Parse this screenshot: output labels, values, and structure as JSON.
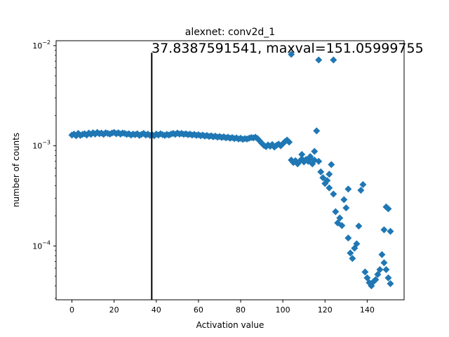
{
  "chart_data": {
    "type": "scatter",
    "title": "alexnet: conv2d_1",
    "annotation": "37.8387591541, maxval=151.05999755",
    "xlabel": "Activation value",
    "ylabel": "number of counts",
    "x_scale": "linear",
    "y_scale": "log",
    "xlim": [
      -7.5,
      157.5
    ],
    "ylim": [
      2.9e-05,
      0.0112
    ],
    "x_ticks": [
      0,
      20,
      40,
      60,
      80,
      100,
      120,
      140
    ],
    "x_tick_labels": [
      "0",
      "20",
      "40",
      "60",
      "80",
      "100",
      "120",
      "140"
    ],
    "y_ticks": [
      0.0001,
      0.001,
      0.01
    ],
    "y_tick_labels": [
      "10^-4",
      "10^-3",
      "10^-2"
    ],
    "marker": "diamond",
    "color": "#1f77b4",
    "vline": {
      "x": 37.84,
      "y_top": 0.0085,
      "color": "#000000"
    },
    "grid": false,
    "series": [
      {
        "points": [
          [
            0,
            0.00128
          ],
          [
            1,
            0.00131
          ],
          [
            2,
            0.00126
          ],
          [
            3,
            0.00133
          ],
          [
            4,
            0.00127
          ],
          [
            5,
            0.0013
          ],
          [
            6,
            0.00132
          ],
          [
            7,
            0.00128
          ],
          [
            8,
            0.00134
          ],
          [
            9,
            0.0013
          ],
          [
            10,
            0.00135
          ],
          [
            11,
            0.00131
          ],
          [
            12,
            0.00136
          ],
          [
            13,
            0.00132
          ],
          [
            14,
            0.00134
          ],
          [
            15,
            0.0013
          ],
          [
            16,
            0.00135
          ],
          [
            17,
            0.00133
          ],
          [
            18,
            0.00131
          ],
          [
            19,
            0.00134
          ],
          [
            20,
            0.00136
          ],
          [
            21,
            0.00132
          ],
          [
            22,
            0.00135
          ],
          [
            23,
            0.00131
          ],
          [
            24,
            0.00134
          ],
          [
            25,
            0.00133
          ],
          [
            26,
            0.0013
          ],
          [
            27,
            0.00132
          ],
          [
            28,
            0.00128
          ],
          [
            29,
            0.00131
          ],
          [
            30,
            0.00129
          ],
          [
            31,
            0.00132
          ],
          [
            32,
            0.00127
          ],
          [
            33,
            0.0013
          ],
          [
            34,
            0.00133
          ],
          [
            35,
            0.00128
          ],
          [
            36,
            0.00131
          ],
          [
            37,
            0.00127
          ],
          [
            38,
            0.00129
          ],
          [
            39,
            0.00126
          ],
          [
            40,
            0.00131
          ],
          [
            41,
            0.00128
          ],
          [
            42,
            0.00132
          ],
          [
            43,
            0.00129
          ],
          [
            44,
            0.00127
          ],
          [
            45,
            0.0013
          ],
          [
            46,
            0.00128
          ],
          [
            47,
            0.00131
          ],
          [
            48,
            0.00133
          ],
          [
            49,
            0.0013
          ],
          [
            50,
            0.00134
          ],
          [
            51,
            0.00131
          ],
          [
            52,
            0.00133
          ],
          [
            53,
            0.0013
          ],
          [
            54,
            0.00132
          ],
          [
            55,
            0.00129
          ],
          [
            56,
            0.00131
          ],
          [
            57,
            0.00128
          ],
          [
            58,
            0.0013
          ],
          [
            59,
            0.00127
          ],
          [
            60,
            0.00129
          ],
          [
            61,
            0.00126
          ],
          [
            62,
            0.00128
          ],
          [
            63,
            0.00125
          ],
          [
            64,
            0.00127
          ],
          [
            65,
            0.00124
          ],
          [
            66,
            0.00126
          ],
          [
            67,
            0.00123
          ],
          [
            68,
            0.00125
          ],
          [
            69,
            0.00122
          ],
          [
            70,
            0.00124
          ],
          [
            71,
            0.00121
          ],
          [
            72,
            0.00123
          ],
          [
            73,
            0.0012
          ],
          [
            74,
            0.00122
          ],
          [
            75,
            0.00119
          ],
          [
            76,
            0.00121
          ],
          [
            77,
            0.00118
          ],
          [
            78,
            0.0012
          ],
          [
            79,
            0.00117
          ],
          [
            80,
            0.00119
          ],
          [
            81,
            0.00116
          ],
          [
            82,
            0.00118
          ],
          [
            83,
            0.00117
          ],
          [
            84,
            0.00119
          ],
          [
            85,
            0.00121
          ],
          [
            86,
            0.0012
          ],
          [
            87,
            0.00122
          ],
          [
            88,
            0.00118
          ],
          [
            89,
            0.00112
          ],
          [
            90,
            0.00106
          ],
          [
            91,
            0.00101
          ],
          [
            92,
            0.00098
          ],
          [
            93,
            0.00102
          ],
          [
            94,
            0.00099
          ],
          [
            95,
            0.00103
          ],
          [
            96,
            0.00097
          ],
          [
            97,
            0.00101
          ],
          [
            98,
            0.00104
          ],
          [
            99,
            0.001
          ],
          [
            100,
            0.00105
          ],
          [
            101,
            0.0011
          ],
          [
            102,
            0.00114
          ],
          [
            103,
            0.00109
          ],
          [
            104,
            0.0082
          ],
          [
            104,
            0.00072
          ],
          [
            105,
            0.00068
          ],
          [
            106,
            0.00071
          ],
          [
            107,
            0.00066
          ],
          [
            108,
            0.0007
          ],
          [
            109,
            0.00074
          ],
          [
            109,
            0.00082
          ],
          [
            110,
            0.00069
          ],
          [
            111,
            0.00073
          ],
          [
            112,
            0.0007
          ],
          [
            113,
            0.00075
          ],
          [
            113,
            0.00078
          ],
          [
            114,
            0.00066
          ],
          [
            115,
            0.00072
          ],
          [
            115,
            0.00088
          ],
          [
            116,
            0.00141
          ],
          [
            117,
            0.0007
          ],
          [
            117,
            0.0072
          ],
          [
            118,
            0.00055
          ],
          [
            119,
            0.00048
          ],
          [
            120,
            0.00042
          ],
          [
            121,
            0.00045
          ],
          [
            122,
            0.00038
          ],
          [
            122,
            0.00052
          ],
          [
            123,
            0.00065
          ],
          [
            124,
            0.0072
          ],
          [
            124,
            0.00033
          ],
          [
            125,
            0.00022
          ],
          [
            126,
            0.00017
          ],
          [
            127,
            0.00019
          ],
          [
            128,
            0.00016
          ],
          [
            129,
            0.00029
          ],
          [
            130,
            0.00024
          ],
          [
            131,
            0.00037
          ],
          [
            131,
            0.00012
          ],
          [
            132,
            8.5e-05
          ],
          [
            133,
            7.5e-05
          ],
          [
            134,
            9.5e-05
          ],
          [
            135,
            0.000105
          ],
          [
            136,
            0.000158
          ],
          [
            137,
            0.00036
          ],
          [
            138,
            0.00041
          ],
          [
            139,
            5.5e-05
          ],
          [
            140,
            4.8e-05
          ],
          [
            141,
            4.3e-05
          ],
          [
            142,
            4e-05
          ],
          [
            143,
            4.4e-05
          ],
          [
            144,
            4.6e-05
          ],
          [
            145,
            5.2e-05
          ],
          [
            146,
            5.8e-05
          ],
          [
            147,
            8.2e-05
          ],
          [
            148,
            0.000145
          ],
          [
            148,
            6.8e-05
          ],
          [
            149,
            0.000245
          ],
          [
            149,
            5.8e-05
          ],
          [
            150,
            0.000235
          ],
          [
            150,
            4.8e-05
          ],
          [
            151,
            0.00014
          ],
          [
            151,
            4.2e-05
          ]
        ]
      }
    ]
  }
}
